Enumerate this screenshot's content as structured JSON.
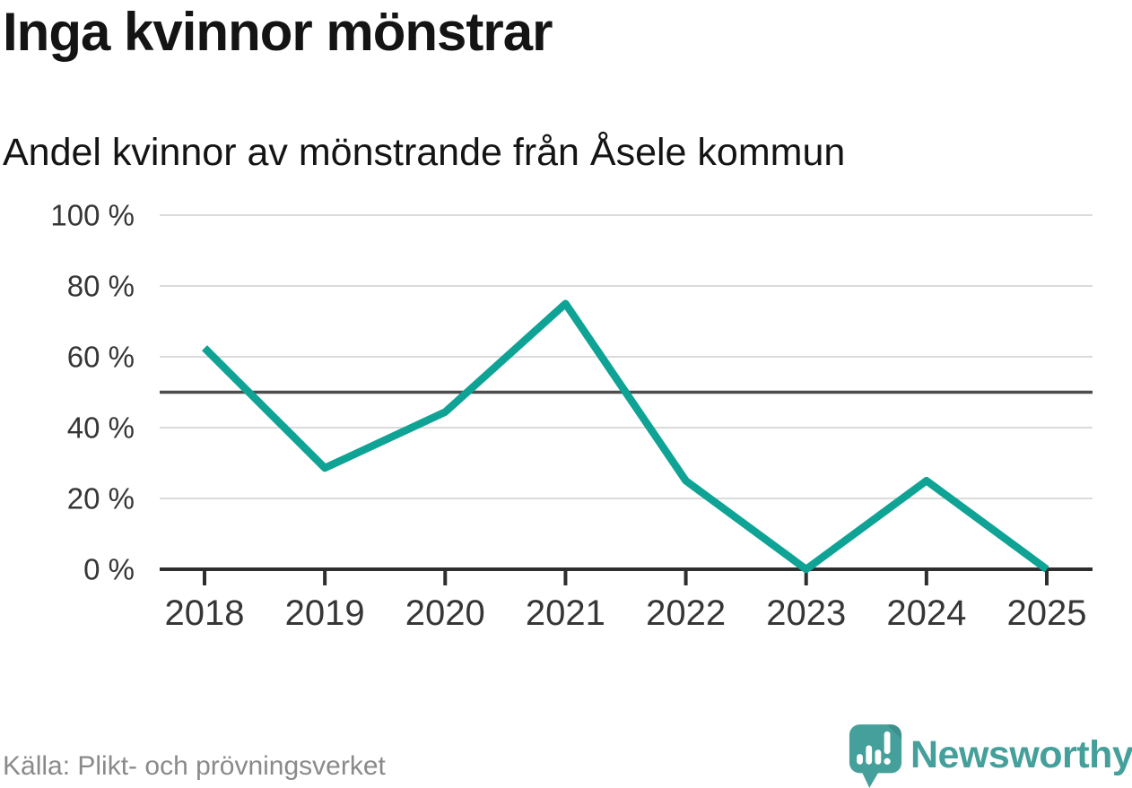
{
  "header": {
    "title": "Inga kvinnor mönstrar",
    "subtitle": "Andel kvinnor av mönstrande från Åsele kommun"
  },
  "chart_data": {
    "type": "line",
    "title": "Inga kvinnor mönstrar",
    "subtitle": "Andel kvinnor av mönstrande från Åsele kommun",
    "categories": [
      "2018",
      "2019",
      "2020",
      "2021",
      "2022",
      "2023",
      "2024",
      "2025"
    ],
    "values": [
      62.5,
      28.6,
      44.4,
      75,
      25,
      0,
      25,
      0
    ],
    "unit": "%",
    "xlabel": "",
    "ylabel": "",
    "ylim": [
      0,
      100
    ],
    "yticks": [
      0,
      20,
      40,
      60,
      80,
      100
    ],
    "ytick_suffix": " %",
    "ytick_labels": [
      "0 %",
      "20 %",
      "40 %",
      "60 %",
      "80 %",
      "100 %"
    ],
    "reference_line": 50,
    "grid": true,
    "legend_position": "none"
  },
  "footer": {
    "source": "Källa: Plikt- och prövningsverket",
    "brand": "Newsworthy"
  },
  "colors": {
    "background": "#FFFFFF",
    "line": "#0FA396",
    "brand": "#45A09B",
    "grid": "#DBDBDB",
    "reference": "#4D4D4D",
    "axis": "#2E2E2E",
    "axis_text": "#363636",
    "title_text": "#141414",
    "source_text": "#8A8A8A"
  }
}
